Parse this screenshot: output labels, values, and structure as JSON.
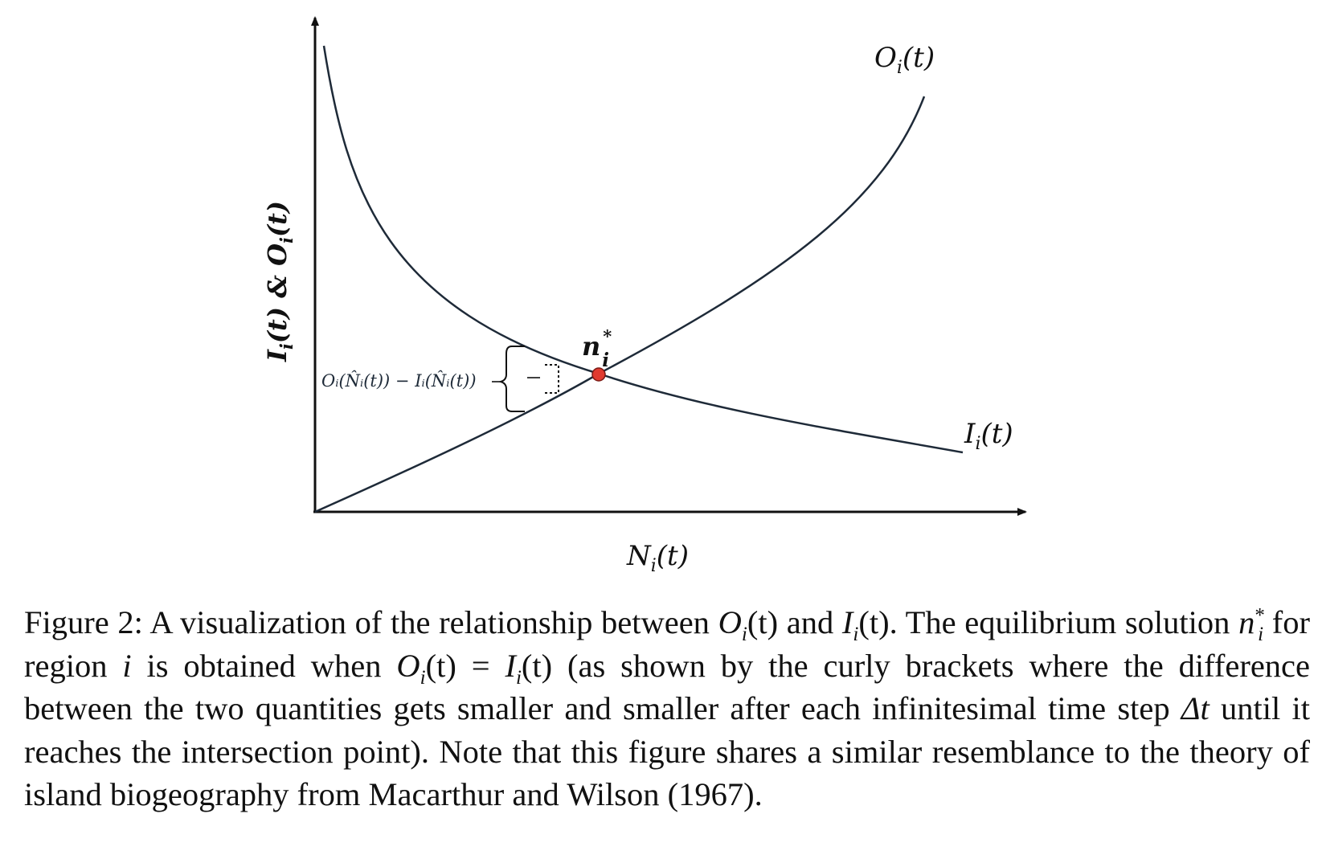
{
  "figure": {
    "y_axis_label_parts": [
      "I",
      "i",
      "(t) & ",
      "O",
      "i",
      "(t)"
    ],
    "x_axis_label_parts": [
      "N",
      "i",
      "(t)"
    ],
    "outflow_curve_label_parts": [
      "O",
      "i",
      "(t)"
    ],
    "inflow_curve_label_parts": [
      "I",
      "i",
      "(t)"
    ],
    "equilibrium_label_parts": [
      "n",
      "*",
      "i"
    ],
    "bracket_label": "Oᵢ(N̂ᵢ(t)) − Iᵢ(N̂ᵢ(t))",
    "colors": {
      "curve": "#1e2a38",
      "axis": "#111111",
      "equilibrium_point": "#e03a2f"
    }
  },
  "caption": {
    "lead": "Figure 2:  A visualization of the relationship between ",
    "O_sym": "O",
    "i_sub": "i",
    "t_paren": "(t)",
    "and": " and ",
    "I_sym": "I",
    "seg1": ".  The equilibrium solution ",
    "n_sym": "n",
    "star": "*",
    "seg2": " for region ",
    "i_var": "i",
    "seg3": " is obtained when ",
    "equals": " = ",
    "seg4": " (as shown by the curly brackets where the difference between the two quantities gets smaller and smaller after each infinitesimal time step ",
    "delta_t": "Δt",
    "seg5": " until it reaches the intersection point).  Note that this figure shares a similar resemblance to the theory of island biogeography from Macarthur and Wilson (1967)."
  }
}
